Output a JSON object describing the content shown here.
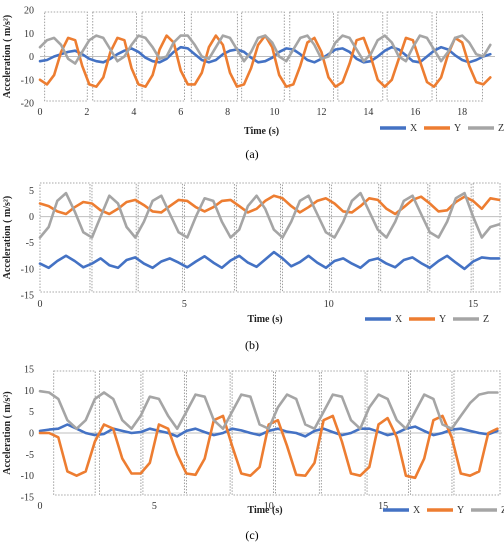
{
  "chart_data": [
    {
      "type": "line",
      "panel_label": "(a)",
      "xlabel": "Time (s)",
      "ylabel": "Acceleration ( m/s²)",
      "xlim": [
        0,
        19.4
      ],
      "ylim": [
        -20,
        20
      ],
      "xticks": [
        0,
        2,
        4,
        6,
        8,
        10,
        12,
        14,
        16,
        18
      ],
      "yticks": [
        -20,
        -10,
        0,
        10,
        20
      ],
      "grid": false,
      "legend_position": "bottom-right",
      "series": [
        {
          "name": "X",
          "color": "#4472C4",
          "x": [
            0,
            0.3,
            0.6,
            0.9,
            1.2,
            1.5,
            1.8,
            2.1,
            2.4,
            2.7,
            3.0,
            3.3,
            3.6,
            3.9,
            4.2,
            4.5,
            4.8,
            5.1,
            5.4,
            5.7,
            6.0,
            6.3,
            6.6,
            6.9,
            7.2,
            7.5,
            7.8,
            8.1,
            8.4,
            8.7,
            9.0,
            9.3,
            9.6,
            9.9,
            10.2,
            10.5,
            10.8,
            11.1,
            11.4,
            11.7,
            12.0,
            12.3,
            12.6,
            12.9,
            13.2,
            13.5,
            13.8,
            14.1,
            14.4,
            14.7,
            15.0,
            15.3,
            15.6,
            15.9,
            16.2,
            16.5,
            16.8,
            17.1,
            17.4,
            17.7,
            18.0,
            18.3,
            18.6,
            18.9,
            19.2
          ],
          "y": [
            -2,
            -1.5,
            0,
            1,
            2,
            2.5,
            1,
            -1,
            -2,
            -2.5,
            -1,
            1,
            2.5,
            3.5,
            2,
            -0.5,
            -2,
            -2.5,
            -1,
            2,
            4,
            3.5,
            1,
            -1.5,
            -2.5,
            -1.5,
            1,
            2.5,
            3,
            2,
            -0.5,
            -2.5,
            -2,
            -0.5,
            2,
            3.5,
            3,
            1,
            -1.5,
            -2.5,
            -1,
            1,
            3,
            3.5,
            2,
            -1,
            -2.5,
            -2,
            0,
            2.5,
            4,
            3,
            0.5,
            -2,
            -2.5,
            0,
            2.5,
            4,
            3,
            0.5,
            -1.5,
            -2.5,
            -1.5,
            0,
            1
          ]
        },
        {
          "name": "Y",
          "color": "#ED7D31",
          "x": [
            0,
            0.3,
            0.6,
            0.9,
            1.2,
            1.5,
            1.8,
            2.1,
            2.4,
            2.7,
            3.0,
            3.3,
            3.6,
            3.9,
            4.2,
            4.5,
            4.8,
            5.1,
            5.4,
            5.7,
            6.0,
            6.3,
            6.6,
            6.9,
            7.2,
            7.5,
            7.8,
            8.1,
            8.4,
            8.7,
            9.0,
            9.3,
            9.6,
            9.9,
            10.2,
            10.5,
            10.8,
            11.1,
            11.4,
            11.7,
            12.0,
            12.3,
            12.6,
            12.9,
            13.2,
            13.5,
            13.8,
            14.1,
            14.4,
            14.7,
            15.0,
            15.3,
            15.6,
            15.9,
            16.2,
            16.5,
            16.8,
            17.1,
            17.4,
            17.7,
            18.0,
            18.3,
            18.6,
            18.9,
            19.2
          ],
          "y": [
            -10,
            -12,
            -8,
            2,
            8,
            7,
            -4,
            -12,
            -13,
            -9,
            2,
            8,
            7,
            -5,
            -12,
            -13,
            -8,
            3,
            9,
            6,
            -6,
            -12,
            -12,
            -7,
            4,
            9,
            5,
            -7,
            -13,
            -12,
            -5,
            5,
            9,
            4,
            -8,
            -13,
            -12,
            -4,
            6,
            8,
            2,
            -9,
            -13,
            -11,
            -3,
            7,
            8,
            0,
            -10,
            -13,
            -10,
            -1,
            8,
            7,
            -2,
            -11,
            -13,
            -9,
            1,
            8,
            6,
            -4,
            -11,
            -12,
            -9
          ]
        },
        {
          "name": "Z",
          "color": "#A5A5A5",
          "x": [
            0,
            0.3,
            0.6,
            0.9,
            1.2,
            1.5,
            1.8,
            2.1,
            2.4,
            2.7,
            3.0,
            3.3,
            3.6,
            3.9,
            4.2,
            4.5,
            4.8,
            5.1,
            5.4,
            5.7,
            6.0,
            6.3,
            6.6,
            6.9,
            7.2,
            7.5,
            7.8,
            8.1,
            8.4,
            8.7,
            9.0,
            9.3,
            9.6,
            9.9,
            10.2,
            10.5,
            10.8,
            11.1,
            11.4,
            11.7,
            12.0,
            12.3,
            12.6,
            12.9,
            13.2,
            13.5,
            13.8,
            14.1,
            14.4,
            14.7,
            15.0,
            15.3,
            15.6,
            15.9,
            16.2,
            16.5,
            16.8,
            17.1,
            17.4,
            17.7,
            18.0,
            18.3,
            18.6,
            18.9,
            19.2
          ],
          "y": [
            4,
            7,
            8,
            5,
            -1,
            -3,
            2,
            7,
            9,
            8,
            3,
            -2,
            0,
            5,
            9,
            8,
            4,
            -1,
            0,
            6,
            9,
            9,
            5,
            0,
            -1,
            4,
            9,
            8,
            3,
            -2,
            2,
            8,
            9,
            6,
            0,
            -2,
            3,
            8,
            9,
            5,
            -1,
            0,
            6,
            9,
            8,
            3,
            -2,
            1,
            7,
            9,
            6,
            0,
            -2,
            4,
            9,
            8,
            3,
            -2,
            2,
            8,
            9,
            6,
            1,
            0,
            5
          ]
        }
      ]
    },
    {
      "type": "line",
      "panel_label": "(b)",
      "xlabel": "Time (s)",
      "ylabel": "Acceleration ( m/s²)",
      "xlim": [
        0,
        16
      ],
      "ylim": [
        -15,
        7
      ],
      "xticks": [
        0,
        5,
        10,
        15
      ],
      "yticks": [
        -15,
        -10,
        -5,
        0,
        5
      ],
      "grid": false,
      "legend_position": "bottom-right",
      "series": [
        {
          "name": "X",
          "color": "#4472C4",
          "x": [
            0,
            0.3,
            0.6,
            0.9,
            1.2,
            1.5,
            1.8,
            2.1,
            2.4,
            2.7,
            3.0,
            3.3,
            3.6,
            3.9,
            4.2,
            4.5,
            4.8,
            5.1,
            5.4,
            5.7,
            6.0,
            6.3,
            6.6,
            6.9,
            7.2,
            7.5,
            7.8,
            8.1,
            8.4,
            8.7,
            9.0,
            9.3,
            9.6,
            9.9,
            10.2,
            10.5,
            10.8,
            11.1,
            11.4,
            11.7,
            12.0,
            12.3,
            12.6,
            12.9,
            13.2,
            13.5,
            13.8,
            14.1,
            14.4,
            14.7,
            15.0,
            15.3,
            15.6,
            15.9
          ],
          "y": [
            -9,
            -9.8,
            -8.5,
            -7.5,
            -8.5,
            -9.7,
            -9,
            -8,
            -9.3,
            -9.8,
            -8.3,
            -7.8,
            -9,
            -9.8,
            -8.6,
            -8,
            -8.8,
            -9.7,
            -8.6,
            -7.6,
            -8.8,
            -9.8,
            -8.4,
            -7.5,
            -8.8,
            -9.6,
            -8.2,
            -6.8,
            -8,
            -9.5,
            -8.7,
            -7.5,
            -8.8,
            -9.8,
            -8.5,
            -8,
            -9,
            -9.8,
            -8.4,
            -8,
            -9,
            -9.7,
            -8.3,
            -7.8,
            -8.9,
            -9.8,
            -8.5,
            -7.5,
            -8.8,
            -10,
            -8.6,
            -7.8,
            -8,
            -8
          ]
        },
        {
          "name": "Y",
          "color": "#ED7D31",
          "x": [
            0,
            0.3,
            0.6,
            0.9,
            1.2,
            1.5,
            1.8,
            2.1,
            2.4,
            2.7,
            3.0,
            3.3,
            3.6,
            3.9,
            4.2,
            4.5,
            4.8,
            5.1,
            5.4,
            5.7,
            6.0,
            6.3,
            6.6,
            6.9,
            7.2,
            7.5,
            7.8,
            8.1,
            8.4,
            8.7,
            9.0,
            9.3,
            9.6,
            9.9,
            10.2,
            10.5,
            10.8,
            11.1,
            11.4,
            11.7,
            12.0,
            12.3,
            12.6,
            12.9,
            13.2,
            13.5,
            13.8,
            14.1,
            14.4,
            14.7,
            15.0,
            15.3,
            15.6,
            15.9
          ],
          "y": [
            2.5,
            2,
            1,
            0.5,
            1.8,
            2.8,
            2.5,
            1.2,
            0.5,
            1.5,
            2.8,
            3.2,
            2.2,
            1,
            0.8,
            2,
            3.2,
            3,
            1.8,
            1,
            1.8,
            3,
            3.2,
            2,
            0.8,
            1.5,
            3,
            4,
            3.5,
            2,
            0.8,
            1.8,
            3,
            3.5,
            2.5,
            1,
            0.8,
            2,
            3.5,
            3.2,
            1.5,
            0.5,
            1.8,
            3.2,
            3.8,
            2.5,
            1,
            1.2,
            2.8,
            3.8,
            3,
            1.5,
            3.5,
            3.2
          ]
        },
        {
          "name": "Z",
          "color": "#A5A5A5",
          "x": [
            0,
            0.3,
            0.6,
            0.9,
            1.2,
            1.5,
            1.8,
            2.1,
            2.4,
            2.7,
            3.0,
            3.3,
            3.6,
            3.9,
            4.2,
            4.5,
            4.8,
            5.1,
            5.4,
            5.7,
            6.0,
            6.3,
            6.6,
            6.9,
            7.2,
            7.5,
            7.8,
            8.1,
            8.4,
            8.7,
            9.0,
            9.3,
            9.6,
            9.9,
            10.2,
            10.5,
            10.8,
            11.1,
            11.4,
            11.7,
            12.0,
            12.3,
            12.6,
            12.9,
            13.2,
            13.5,
            13.8,
            14.1,
            14.4,
            14.7,
            15.0,
            15.3,
            15.6,
            15.9
          ],
          "y": [
            -4,
            -2,
            3,
            4.5,
            1,
            -3,
            -4,
            0,
            4,
            2.5,
            -2,
            -4,
            -1,
            3,
            4,
            0.5,
            -3,
            -4,
            0,
            3.5,
            3,
            -1,
            -4,
            -2.5,
            2,
            4,
            1.5,
            -2.5,
            -4,
            -1,
            3,
            4,
            0.5,
            -3,
            -4,
            -1,
            3,
            4.5,
            1,
            -2.5,
            -4,
            -1,
            3,
            4,
            0.5,
            -3,
            -4,
            -1,
            3.5,
            4.5,
            0,
            -4,
            -2,
            -1.5
          ]
        }
      ]
    },
    {
      "type": "line",
      "panel_label": "(c)",
      "xlabel": "Time (s)",
      "ylabel": "Acceleration ( m/s²)",
      "xlim": [
        0,
        20.2
      ],
      "ylim": [
        -15,
        15
      ],
      "xticks": [
        0,
        5,
        10,
        15
      ],
      "yticks": [
        -15,
        -10,
        -5,
        0,
        5,
        10,
        15
      ],
      "grid": false,
      "legend_position": "bottom-right",
      "series": [
        {
          "name": "X",
          "color": "#4472C4",
          "x": [
            0,
            0.4,
            0.8,
            1.2,
            1.6,
            2.0,
            2.4,
            2.8,
            3.2,
            3.6,
            4.0,
            4.4,
            4.8,
            5.2,
            5.6,
            6.0,
            6.4,
            6.8,
            7.2,
            7.6,
            8.0,
            8.4,
            8.8,
            9.2,
            9.6,
            10.0,
            10.4,
            10.8,
            11.2,
            11.6,
            12.0,
            12.4,
            12.8,
            13.2,
            13.6,
            14.0,
            14.4,
            14.8,
            15.2,
            15.6,
            16.0,
            16.4,
            16.8,
            17.2,
            17.6,
            18.0,
            18.4,
            18.8,
            19.2,
            19.6,
            20.0
          ],
          "y": [
            0.5,
            0.8,
            1,
            2,
            1,
            0,
            -0.5,
            -0.2,
            1,
            0.5,
            0,
            0.2,
            1,
            0.5,
            0,
            -0.8,
            0.5,
            1,
            0.2,
            -0.5,
            0,
            1,
            0.6,
            0,
            -0.5,
            0.5,
            1,
            0.3,
            0,
            -0.8,
            0.5,
            1,
            0.2,
            -0.5,
            0,
            1,
            1,
            0.3,
            -0.5,
            0,
            1,
            1.5,
            0.5,
            -0.5,
            0,
            0.8,
            1,
            0.5,
            0,
            -0.3,
            0.5
          ]
        },
        {
          "name": "Y",
          "color": "#ED7D31",
          "x": [
            0,
            0.4,
            0.8,
            1.2,
            1.6,
            2.0,
            2.4,
            2.8,
            3.2,
            3.6,
            4.0,
            4.4,
            4.8,
            5.2,
            5.6,
            6.0,
            6.4,
            6.8,
            7.2,
            7.6,
            8.0,
            8.4,
            8.8,
            9.2,
            9.6,
            10.0,
            10.4,
            10.8,
            11.2,
            11.6,
            12.0,
            12.4,
            12.8,
            13.2,
            13.6,
            14.0,
            14.4,
            14.8,
            15.2,
            15.6,
            16.0,
            16.4,
            16.8,
            17.2,
            17.6,
            18.0,
            18.4,
            18.8,
            19.2,
            19.6,
            20.0
          ],
          "y": [
            0,
            0,
            -1,
            -9,
            -10,
            -9,
            -2,
            2,
            1,
            -6,
            -9.5,
            -9.5,
            -7,
            2,
            1,
            -5,
            -9.5,
            -9.8,
            -6,
            3,
            4,
            -3,
            -9.5,
            -10,
            -8,
            2,
            3,
            -3,
            -9.8,
            -10,
            -7,
            3,
            4,
            -2,
            -9.5,
            -10,
            -8,
            2,
            3.5,
            -1,
            -10,
            -10.5,
            -6,
            3,
            4,
            -1,
            -9.5,
            -10,
            -9,
            0,
            1
          ]
        },
        {
          "name": "Z",
          "color": "#A5A5A5",
          "x": [
            0,
            0.4,
            0.8,
            1.2,
            1.6,
            2.0,
            2.4,
            2.8,
            3.2,
            3.6,
            4.0,
            4.4,
            4.8,
            5.2,
            5.6,
            6.0,
            6.4,
            6.8,
            7.2,
            7.6,
            8.0,
            8.4,
            8.8,
            9.2,
            9.6,
            10.0,
            10.4,
            10.8,
            11.2,
            11.6,
            12.0,
            12.4,
            12.8,
            13.2,
            13.6,
            14.0,
            14.4,
            14.8,
            15.2,
            15.6,
            16.0,
            16.4,
            16.8,
            17.2,
            17.6,
            18.0,
            18.4,
            18.8,
            19.2,
            19.6,
            20.0
          ],
          "y": [
            9.8,
            9.5,
            8,
            3,
            1,
            3,
            8,
            9.5,
            8,
            3,
            1,
            4,
            8.5,
            8,
            4,
            1,
            5,
            9,
            8.5,
            3,
            1,
            5,
            9,
            8.5,
            2,
            1,
            6,
            9,
            8,
            2,
            1,
            5,
            9,
            8.5,
            3,
            1,
            6,
            9,
            8,
            3,
            1,
            5,
            9,
            8,
            2,
            1,
            4,
            7,
            9,
            9.5,
            9.5
          ]
        }
      ]
    }
  ]
}
